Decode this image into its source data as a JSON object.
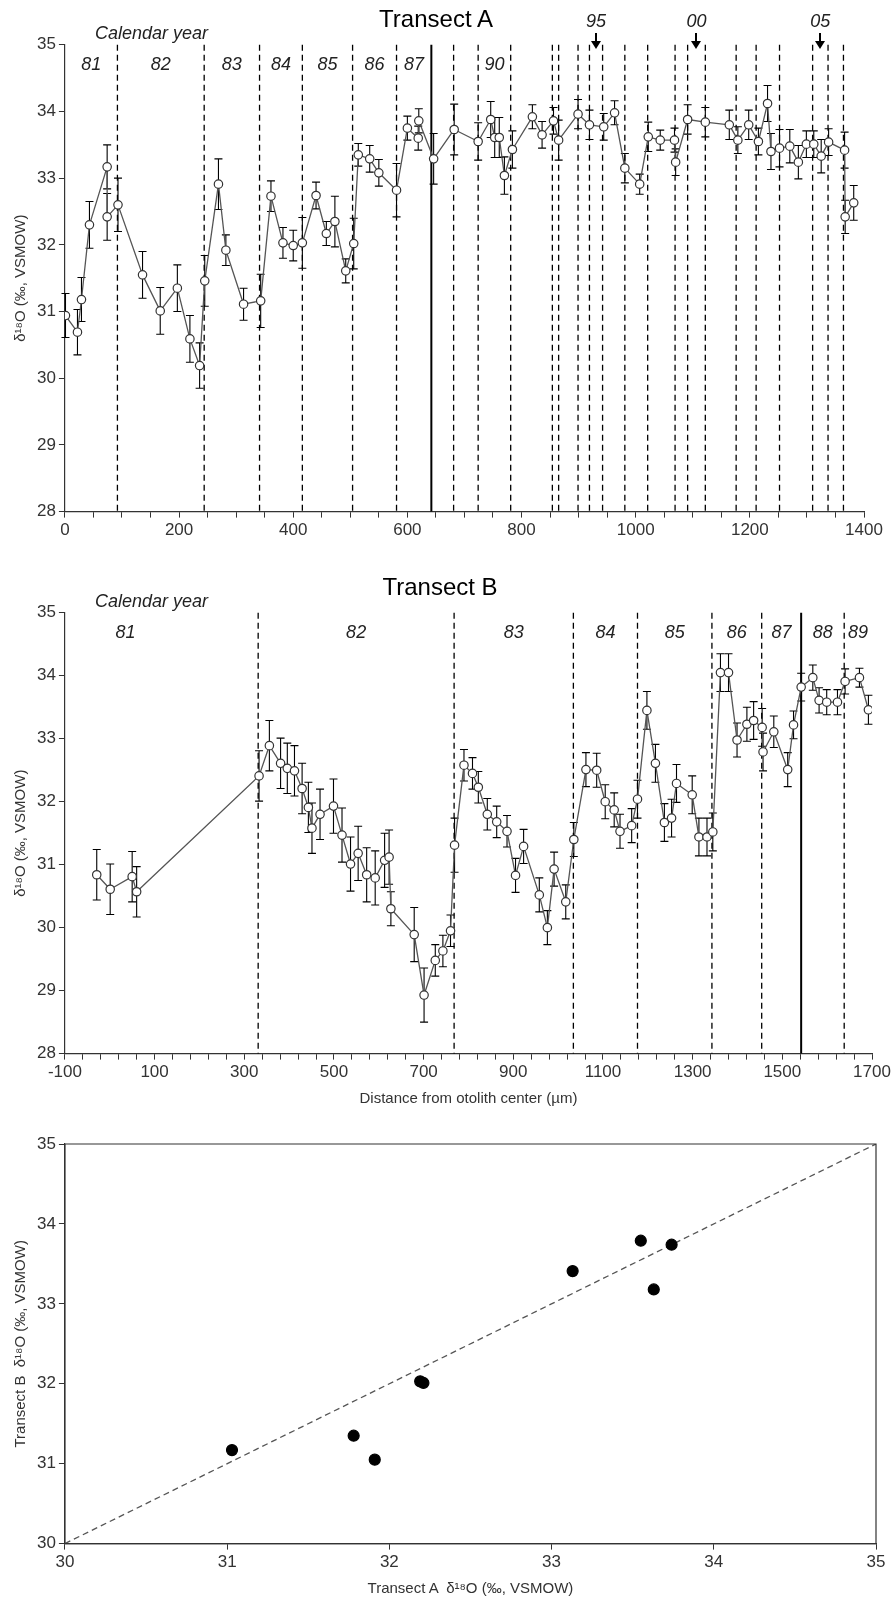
{
  "chart_data": [
    {
      "type": "line",
      "title": "Transect A",
      "ylabel": "δ¹⁸O (‰, VSMOW)",
      "color": "#555555",
      "marker": "circle",
      "xlim": [
        0,
        1400
      ],
      "ylim": [
        28,
        35
      ],
      "xticks": [
        0,
        {
          "value": 50,
          "label": null
        },
        {
          "value": 100,
          "label": null
        },
        {
          "value": 150,
          "label": null
        },
        200,
        {
          "value": 250,
          "label": null
        },
        {
          "value": 300,
          "label": null
        },
        {
          "value": 350,
          "label": null
        },
        400,
        {
          "value": 450,
          "label": null
        },
        {
          "value": 500,
          "label": null
        },
        {
          "value": 550,
          "label": null
        },
        600,
        {
          "value": 650,
          "label": null
        },
        {
          "value": 700,
          "label": null
        },
        {
          "value": 750,
          "label": null
        },
        800,
        {
          "value": 850,
          "label": null
        },
        {
          "value": 900,
          "label": null
        },
        {
          "value": 950,
          "label": null
        },
        1000,
        {
          "value": 1050,
          "label": null
        },
        {
          "value": 1100,
          "label": null
        },
        {
          "value": 1150,
          "label": null
        },
        1200,
        {
          "value": 1250,
          "label": null
        },
        {
          "value": 1300,
          "label": null
        },
        {
          "value": 1350,
          "label": null
        },
        1400
      ],
      "yticks": [
        28,
        29,
        30,
        31,
        32,
        33,
        34,
        35
      ],
      "x": [
        1,
        22,
        29,
        43,
        74,
        74,
        93,
        136,
        167,
        197,
        219,
        236,
        245,
        269,
        282,
        313,
        343,
        361,
        382,
        400,
        416,
        440,
        458,
        473,
        492,
        506,
        514,
        534,
        550,
        581,
        600,
        619,
        620,
        646,
        682,
        724,
        746,
        753,
        761,
        770,
        784,
        819,
        836,
        856,
        865,
        899,
        919,
        944,
        963,
        981,
        1007,
        1022,
        1043,
        1068,
        1070,
        1091,
        1122,
        1164,
        1179,
        1198,
        1215,
        1231,
        1237,
        1252,
        1270,
        1285,
        1299,
        1312,
        1325,
        1338,
        1366,
        1367,
        1382
      ],
      "values": [
        30.94,
        30.69,
        31.18,
        32.3,
        33.17,
        32.42,
        32.6,
        31.55,
        31.01,
        31.35,
        30.59,
        30.19,
        31.46,
        32.91,
        31.92,
        31.11,
        31.16,
        32.73,
        32.03,
        31.99,
        32.03,
        32.74,
        32.17,
        32.35,
        31.61,
        32.02,
        33.35,
        33.29,
        33.08,
        32.82,
        33.75,
        33.6,
        33.86,
        33.29,
        33.73,
        33.55,
        33.88,
        33.61,
        33.61,
        33.04,
        33.43,
        33.92,
        33.65,
        33.86,
        33.57,
        33.96,
        33.8,
        33.77,
        33.98,
        33.15,
        32.91,
        33.62,
        33.57,
        33.57,
        33.24,
        33.88,
        33.84,
        33.8,
        33.57,
        33.8,
        33.55,
        34.12,
        33.4,
        33.45,
        33.48,
        33.24,
        33.51,
        33.51,
        33.33,
        33.54,
        33.42,
        32.42,
        32.63
      ],
      "errors": [
        0.33,
        0.34,
        0.33,
        0.35,
        0.33,
        0.35,
        0.4,
        0.35,
        0.35,
        0.35,
        0.35,
        0.34,
        0.38,
        0.38,
        0.23,
        0.24,
        0.4,
        0.23,
        0.23,
        0.23,
        0.38,
        0.2,
        0.18,
        0.38,
        0.18,
        0.38,
        0.17,
        0.2,
        0.2,
        0.4,
        0.18,
        0.18,
        0.18,
        0.38,
        0.38,
        0.28,
        0.27,
        0.3,
        0.3,
        0.28,
        0.28,
        0.18,
        0.2,
        0.2,
        0.3,
        0.22,
        0.22,
        0.2,
        0.18,
        0.22,
        0.15,
        0.22,
        0.15,
        0.18,
        0.2,
        0.22,
        0.22,
        0.22,
        0.2,
        0.22,
        0.2,
        0.27,
        0.27,
        0.28,
        0.25,
        0.25,
        0.2,
        0.2,
        0.25,
        0.2,
        0.27,
        0.25,
        0.26
      ],
      "ref_lines": [
        {
          "axis": "x",
          "value": 92,
          "line_style": "dashed",
          "color": "#000000"
        },
        {
          "axis": "x",
          "value": 244,
          "line_style": "dashed",
          "color": "#000000"
        },
        {
          "axis": "x",
          "value": 341,
          "line_style": "dashed",
          "color": "#000000"
        },
        {
          "axis": "x",
          "value": 416,
          "line_style": "dashed",
          "color": "#000000"
        },
        {
          "axis": "x",
          "value": 504,
          "line_style": "dashed",
          "color": "#000000"
        },
        {
          "axis": "x",
          "value": 581,
          "line_style": "dashed",
          "color": "#000000"
        },
        {
          "axis": "x",
          "value": 642,
          "line_style": "solid",
          "color": "#000000"
        },
        {
          "axis": "x",
          "value": 681,
          "line_style": "dashed",
          "color": "#000000"
        },
        {
          "axis": "x",
          "value": 724,
          "line_style": "dashed",
          "color": "#000000"
        },
        {
          "axis": "x",
          "value": 781,
          "line_style": "dashed",
          "color": "#000000"
        },
        {
          "axis": "x",
          "value": 854,
          "line_style": "dashed",
          "color": "#000000"
        },
        {
          "axis": "x",
          "value": 865,
          "line_style": "dashed",
          "color": "#000000"
        },
        {
          "axis": "x",
          "value": 899,
          "line_style": "dashed",
          "color": "#000000"
        },
        {
          "axis": "x",
          "value": 919,
          "line_style": "dashed",
          "color": "#000000"
        },
        {
          "axis": "x",
          "value": 942,
          "line_style": "dashed",
          "color": "#000000"
        },
        {
          "axis": "x",
          "value": 981,
          "line_style": "dashed",
          "color": "#000000"
        },
        {
          "axis": "x",
          "value": 1021,
          "line_style": "dashed",
          "color": "#000000"
        },
        {
          "axis": "x",
          "value": 1069,
          "line_style": "dashed",
          "color": "#000000"
        },
        {
          "axis": "x",
          "value": 1091,
          "line_style": "dashed",
          "color": "#000000"
        },
        {
          "axis": "x",
          "value": 1122,
          "line_style": "dashed",
          "color": "#000000"
        },
        {
          "axis": "x",
          "value": 1176,
          "line_style": "dashed",
          "color": "#000000"
        },
        {
          "axis": "x",
          "value": 1211,
          "line_style": "dashed",
          "color": "#000000"
        },
        {
          "axis": "x",
          "value": 1252,
          "line_style": "dashed",
          "color": "#000000"
        },
        {
          "axis": "x",
          "value": 1310,
          "line_style": "dashed",
          "color": "#000000"
        },
        {
          "axis": "x",
          "value": 1337,
          "line_style": "dashed",
          "color": "#000000"
        },
        {
          "axis": "x",
          "value": 1364,
          "line_style": "dashed",
          "color": "#000000"
        }
      ],
      "annotations": [
        "Calendar year",
        "81",
        "82",
        "83",
        "84",
        "85",
        "86",
        "87",
        "90",
        "95",
        "00",
        "05"
      ]
    },
    {
      "type": "line",
      "title": "Transect B",
      "xlabel": "Distance from otolith center (µm)",
      "ylabel": "δ¹⁸O (‰, VSMOW)",
      "color": "#555555",
      "marker": "circle",
      "xlim": [
        -100,
        1700
      ],
      "ylim": [
        28,
        35
      ],
      "xticks": [
        -100,
        {
          "value": -60,
          "label": null
        },
        {
          "value": -20,
          "label": null
        },
        {
          "value": 20,
          "label": null
        },
        {
          "value": 60,
          "label": null
        },
        100,
        {
          "value": 140,
          "label": null
        },
        {
          "value": 180,
          "label": null
        },
        {
          "value": 220,
          "label": null
        },
        {
          "value": 260,
          "label": null
        },
        300,
        {
          "value": 340,
          "label": null
        },
        {
          "value": 380,
          "label": null
        },
        {
          "value": 420,
          "label": null
        },
        {
          "value": 460,
          "label": null
        },
        500,
        {
          "value": 540,
          "label": null
        },
        {
          "value": 580,
          "label": null
        },
        {
          "value": 620,
          "label": null
        },
        {
          "value": 660,
          "label": null
        },
        700,
        {
          "value": 740,
          "label": null
        },
        {
          "value": 780,
          "label": null
        },
        {
          "value": 820,
          "label": null
        },
        {
          "value": 860,
          "label": null
        },
        900,
        {
          "value": 940,
          "label": null
        },
        {
          "value": 980,
          "label": null
        },
        {
          "value": 1020,
          "label": null
        },
        {
          "value": 1060,
          "label": null
        },
        1100,
        {
          "value": 1140,
          "label": null
        },
        {
          "value": 1180,
          "label": null
        },
        {
          "value": 1220,
          "label": null
        },
        {
          "value": 1260,
          "label": null
        },
        1300,
        {
          "value": 1340,
          "label": null
        },
        {
          "value": 1380,
          "label": null
        },
        {
          "value": 1420,
          "label": null
        },
        {
          "value": 1460,
          "label": null
        },
        1500,
        {
          "value": 1540,
          "label": null
        },
        {
          "value": 1580,
          "label": null
        },
        {
          "value": 1620,
          "label": null
        },
        {
          "value": 1660,
          "label": null
        },
        1700
      ],
      "yticks": [
        28,
        29,
        30,
        31,
        32,
        33,
        34,
        35
      ],
      "x": [
        -29,
        1,
        50,
        60,
        333,
        356,
        381,
        396,
        412,
        429,
        443,
        451,
        469,
        499,
        518,
        537,
        554,
        573,
        592,
        613,
        623,
        627,
        679,
        701,
        726,
        743,
        760,
        769,
        790,
        809,
        822,
        842,
        863,
        886,
        905,
        923,
        958,
        976,
        991,
        1017,
        1035,
        1062,
        1086,
        1105,
        1125,
        1138,
        1164,
        1177,
        1198,
        1217,
        1237,
        1253,
        1264,
        1299,
        1314,
        1332,
        1345,
        1362,
        1380,
        1399,
        1421,
        1436,
        1455,
        1457,
        1481,
        1512,
        1525,
        1542,
        1568,
        1582,
        1599,
        1623,
        1640,
        1672,
        1692
      ],
      "values": [
        30.84,
        30.61,
        30.81,
        30.57,
        32.41,
        32.89,
        32.61,
        32.53,
        32.49,
        32.21,
        31.91,
        31.58,
        31.8,
        31.93,
        31.47,
        31.01,
        31.18,
        30.84,
        30.79,
        31.07,
        31.12,
        30.3,
        29.89,
        28.93,
        29.48,
        29.63,
        29.95,
        31.31,
        32.58,
        32.45,
        32.23,
        31.8,
        31.68,
        31.53,
        30.83,
        31.29,
        30.52,
        30.0,
        30.93,
        30.41,
        31.4,
        32.51,
        32.5,
        32.0,
        31.87,
        31.53,
        31.62,
        32.04,
        33.45,
        32.61,
        31.67,
        31.74,
        32.29,
        32.11,
        31.44,
        31.44,
        31.52,
        34.05,
        34.05,
        32.98,
        33.23,
        33.29,
        33.18,
        32.79,
        33.11,
        32.51,
        33.22,
        33.82,
        33.97,
        33.61,
        33.58,
        33.58,
        33.91,
        33.97,
        33.46
      ],
      "errors": [
        0.4,
        0.4,
        0.4,
        0.4,
        0.4,
        0.4,
        0.4,
        0.4,
        0.4,
        0.4,
        0.4,
        0.4,
        0.4,
        0.43,
        0.43,
        0.43,
        0.43,
        0.43,
        0.43,
        0.43,
        0.43,
        0.27,
        0.43,
        0.43,
        0.25,
        0.25,
        0.25,
        0.43,
        0.25,
        0.25,
        0.25,
        0.25,
        0.25,
        0.25,
        0.27,
        0.27,
        0.27,
        0.27,
        0.27,
        0.27,
        0.27,
        0.27,
        0.27,
        0.27,
        0.27,
        0.27,
        0.27,
        0.3,
        0.3,
        0.3,
        0.3,
        0.3,
        0.3,
        0.3,
        0.3,
        0.3,
        0.3,
        0.3,
        0.3,
        0.27,
        0.27,
        0.3,
        0.3,
        0.3,
        0.25,
        0.27,
        0.22,
        0.22,
        0.2,
        0.2,
        0.2,
        0.2,
        0.2,
        0.15,
        0.23
      ],
      "ref_lines": [
        {
          "axis": "x",
          "value": 331,
          "line_style": "dashed",
          "color": "#000000"
        },
        {
          "axis": "x",
          "value": 768,
          "line_style": "dashed",
          "color": "#000000"
        },
        {
          "axis": "x",
          "value": 1034,
          "line_style": "dashed",
          "color": "#000000"
        },
        {
          "axis": "x",
          "value": 1177,
          "line_style": "dashed",
          "color": "#000000"
        },
        {
          "axis": "x",
          "value": 1343,
          "line_style": "dashed",
          "color": "#000000"
        },
        {
          "axis": "x",
          "value": 1454,
          "line_style": "dashed",
          "color": "#000000"
        },
        {
          "axis": "x",
          "value": 1542,
          "line_style": "solid",
          "color": "#000000"
        },
        {
          "axis": "x",
          "value": 1638,
          "line_style": "dashed",
          "color": "#000000"
        }
      ],
      "annotations": [
        "Calendar year",
        "81",
        "82",
        "83",
        "84",
        "85",
        "86",
        "87",
        "88",
        "89"
      ]
    },
    {
      "type": "scatter",
      "xlabel": "Transect A  δ¹⁸O (‰, VSMOW)",
      "ylabel": "Transect B  δ¹⁸O (‰, VSMOW)",
      "marker": "circle",
      "xlim": [
        30,
        35
      ],
      "ylim": [
        30,
        35
      ],
      "xticks": [
        30,
        31,
        32,
        33,
        34,
        35
      ],
      "yticks": [
        30,
        31,
        32,
        33,
        34,
        35
      ],
      "series": [
        {
          "type": "scatter",
          "color": "#000000",
          "x": [
            31.03,
            31.78,
            31.91,
            32.19,
            32.21,
            33.13,
            33.55,
            33.63,
            33.74
          ],
          "values": [
            31.17,
            31.35,
            31.05,
            32.03,
            32.01,
            33.41,
            33.79,
            33.18,
            33.74
          ]
        },
        {
          "type": "line",
          "color": "#555555",
          "line_style": "dashed",
          "marker": "none",
          "x": [
            30,
            35
          ],
          "values": [
            30,
            35
          ]
        }
      ]
    }
  ]
}
